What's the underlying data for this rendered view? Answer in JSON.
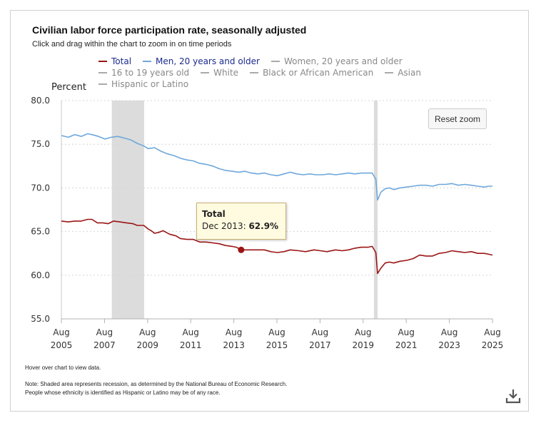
{
  "header": {
    "title": "Civilian labor force participation rate, seasonally adjusted",
    "subtitle": "Click and drag within the chart to zoom in on time periods"
  },
  "legend": {
    "row1": [
      {
        "label": "Total",
        "color": "#9b1515",
        "active": true
      },
      {
        "label": "Men, 20 years and older",
        "color": "#6fa8dc",
        "active": true
      },
      {
        "label": "Women, 20 years and older",
        "color": "#aaaaaa",
        "active": false
      }
    ],
    "row2": [
      {
        "label": "16 to 19 years old",
        "color": "#aaaaaa",
        "active": false
      },
      {
        "label": "White",
        "color": "#aaaaaa",
        "active": false
      },
      {
        "label": "Black or African American",
        "color": "#aaaaaa",
        "active": false
      },
      {
        "label": "Asian",
        "color": "#aaaaaa",
        "active": false
      }
    ],
    "row3": [
      {
        "label": "Hispanic or Latino",
        "color": "#aaaaaa",
        "active": false
      }
    ],
    "active_text_color": "#1a2a8c",
    "inactive_text_color": "#888888"
  },
  "controls": {
    "reset_zoom": "Reset zoom"
  },
  "tooltip": {
    "series": "Total",
    "date": "Dec 2013:",
    "value": "62.9%"
  },
  "footer": {
    "hover_hint": "Hover over chart to view data.",
    "note_line1": "Note: Shaded area represents recession, as determined by the National Bureau of Economic Research.",
    "note_line2": "People whose ethnicity is identified as Hispanic or Latino may be of any race."
  },
  "icons": {
    "download": "download-icon"
  },
  "chart_data": {
    "type": "line",
    "ylabel": "Percent",
    "ylim": [
      55,
      80
    ],
    "yticks": [
      "55.0",
      "60.0",
      "65.0",
      "70.0",
      "75.0",
      "80.0"
    ],
    "xlim": [
      2005.58,
      2025.58
    ],
    "xticks": [
      {
        "x": 2005.58,
        "month": "Aug",
        "year": "2005"
      },
      {
        "x": 2007.58,
        "month": "Aug",
        "year": "2007"
      },
      {
        "x": 2009.58,
        "month": "Aug",
        "year": "2009"
      },
      {
        "x": 2011.58,
        "month": "Aug",
        "year": "2011"
      },
      {
        "x": 2013.58,
        "month": "Aug",
        "year": "2013"
      },
      {
        "x": 2015.58,
        "month": "Aug",
        "year": "2015"
      },
      {
        "x": 2017.58,
        "month": "Aug",
        "year": "2017"
      },
      {
        "x": 2019.58,
        "month": "Aug",
        "year": "2019"
      },
      {
        "x": 2021.58,
        "month": "Aug",
        "year": "2021"
      },
      {
        "x": 2023.58,
        "month": "Aug",
        "year": "2023"
      },
      {
        "x": 2025.58,
        "month": "Aug",
        "year": "2025"
      }
    ],
    "recessions": [
      {
        "start": 2007.92,
        "end": 2009.42
      },
      {
        "start": 2020.08,
        "end": 2020.25
      }
    ],
    "highlight": {
      "series": "Total",
      "x": 2013.92,
      "y": 62.9
    },
    "series": [
      {
        "name": "Total",
        "color": "#9b1515",
        "points": [
          [
            2005.58,
            66.2
          ],
          [
            2005.9,
            66.1
          ],
          [
            2006.2,
            66.2
          ],
          [
            2006.5,
            66.2
          ],
          [
            2006.8,
            66.4
          ],
          [
            2007.0,
            66.4
          ],
          [
            2007.25,
            66.0
          ],
          [
            2007.5,
            66.0
          ],
          [
            2007.75,
            65.9
          ],
          [
            2008.0,
            66.2
          ],
          [
            2008.3,
            66.1
          ],
          [
            2008.6,
            66.0
          ],
          [
            2008.9,
            65.9
          ],
          [
            2009.1,
            65.7
          ],
          [
            2009.4,
            65.7
          ],
          [
            2009.6,
            65.3
          ],
          [
            2009.75,
            65.1
          ],
          [
            2009.9,
            64.8
          ],
          [
            2010.1,
            64.9
          ],
          [
            2010.3,
            65.1
          ],
          [
            2010.6,
            64.7
          ],
          [
            2010.9,
            64.5
          ],
          [
            2011.1,
            64.2
          ],
          [
            2011.4,
            64.1
          ],
          [
            2011.7,
            64.1
          ],
          [
            2012.0,
            63.8
          ],
          [
            2012.3,
            63.8
          ],
          [
            2012.6,
            63.7
          ],
          [
            2012.9,
            63.6
          ],
          [
            2013.2,
            63.4
          ],
          [
            2013.5,
            63.3
          ],
          [
            2013.7,
            63.2
          ],
          [
            2013.92,
            62.9
          ],
          [
            2014.3,
            62.9
          ],
          [
            2014.7,
            62.9
          ],
          [
            2015.0,
            62.9
          ],
          [
            2015.3,
            62.7
          ],
          [
            2015.6,
            62.6
          ],
          [
            2015.9,
            62.7
          ],
          [
            2016.2,
            62.9
          ],
          [
            2016.6,
            62.8
          ],
          [
            2016.9,
            62.7
          ],
          [
            2017.3,
            62.9
          ],
          [
            2017.6,
            62.8
          ],
          [
            2017.9,
            62.7
          ],
          [
            2018.3,
            62.9
          ],
          [
            2018.6,
            62.8
          ],
          [
            2018.9,
            62.9
          ],
          [
            2019.2,
            63.1
          ],
          [
            2019.5,
            63.2
          ],
          [
            2019.8,
            63.2
          ],
          [
            2020.0,
            63.3
          ],
          [
            2020.17,
            62.6
          ],
          [
            2020.25,
            60.2
          ],
          [
            2020.4,
            60.8
          ],
          [
            2020.6,
            61.4
          ],
          [
            2020.8,
            61.5
          ],
          [
            2021.0,
            61.4
          ],
          [
            2021.3,
            61.6
          ],
          [
            2021.6,
            61.7
          ],
          [
            2021.9,
            61.9
          ],
          [
            2022.2,
            62.3
          ],
          [
            2022.5,
            62.2
          ],
          [
            2022.8,
            62.2
          ],
          [
            2023.1,
            62.5
          ],
          [
            2023.4,
            62.6
          ],
          [
            2023.7,
            62.8
          ],
          [
            2024.0,
            62.7
          ],
          [
            2024.3,
            62.6
          ],
          [
            2024.6,
            62.7
          ],
          [
            2024.9,
            62.5
          ],
          [
            2025.2,
            62.5
          ],
          [
            2025.4,
            62.4
          ],
          [
            2025.58,
            62.3
          ]
        ]
      },
      {
        "name": "Men, 20 years and older",
        "color": "#6fa8dc",
        "points": [
          [
            2005.58,
            76.0
          ],
          [
            2005.9,
            75.8
          ],
          [
            2006.2,
            76.1
          ],
          [
            2006.5,
            75.9
          ],
          [
            2006.8,
            76.2
          ],
          [
            2007.0,
            76.1
          ],
          [
            2007.3,
            75.9
          ],
          [
            2007.6,
            75.6
          ],
          [
            2007.9,
            75.8
          ],
          [
            2008.2,
            75.9
          ],
          [
            2008.5,
            75.7
          ],
          [
            2008.8,
            75.5
          ],
          [
            2009.1,
            75.1
          ],
          [
            2009.4,
            74.8
          ],
          [
            2009.6,
            74.5
          ],
          [
            2009.9,
            74.6
          ],
          [
            2010.2,
            74.2
          ],
          [
            2010.5,
            73.9
          ],
          [
            2010.8,
            73.7
          ],
          [
            2011.1,
            73.4
          ],
          [
            2011.4,
            73.2
          ],
          [
            2011.7,
            73.1
          ],
          [
            2012.0,
            72.8
          ],
          [
            2012.3,
            72.7
          ],
          [
            2012.6,
            72.5
          ],
          [
            2012.9,
            72.2
          ],
          [
            2013.2,
            72.0
          ],
          [
            2013.5,
            71.9
          ],
          [
            2013.8,
            71.8
          ],
          [
            2014.1,
            71.9
          ],
          [
            2014.4,
            71.7
          ],
          [
            2014.7,
            71.6
          ],
          [
            2015.0,
            71.7
          ],
          [
            2015.3,
            71.5
          ],
          [
            2015.6,
            71.4
          ],
          [
            2015.9,
            71.6
          ],
          [
            2016.2,
            71.8
          ],
          [
            2016.5,
            71.6
          ],
          [
            2016.8,
            71.5
          ],
          [
            2017.1,
            71.6
          ],
          [
            2017.4,
            71.5
          ],
          [
            2017.7,
            71.5
          ],
          [
            2018.0,
            71.6
          ],
          [
            2018.3,
            71.5
          ],
          [
            2018.6,
            71.6
          ],
          [
            2018.9,
            71.7
          ],
          [
            2019.2,
            71.6
          ],
          [
            2019.5,
            71.7
          ],
          [
            2019.8,
            71.7
          ],
          [
            2020.0,
            71.7
          ],
          [
            2020.17,
            71.0
          ],
          [
            2020.25,
            68.6
          ],
          [
            2020.4,
            69.5
          ],
          [
            2020.6,
            69.9
          ],
          [
            2020.8,
            70.0
          ],
          [
            2021.0,
            69.8
          ],
          [
            2021.3,
            70.0
          ],
          [
            2021.6,
            70.1
          ],
          [
            2021.9,
            70.2
          ],
          [
            2022.2,
            70.3
          ],
          [
            2022.5,
            70.3
          ],
          [
            2022.8,
            70.2
          ],
          [
            2023.1,
            70.4
          ],
          [
            2023.4,
            70.4
          ],
          [
            2023.7,
            70.5
          ],
          [
            2024.0,
            70.3
          ],
          [
            2024.3,
            70.4
          ],
          [
            2024.6,
            70.3
          ],
          [
            2024.9,
            70.2
          ],
          [
            2025.2,
            70.1
          ],
          [
            2025.4,
            70.2
          ],
          [
            2025.58,
            70.2
          ]
        ]
      }
    ]
  }
}
